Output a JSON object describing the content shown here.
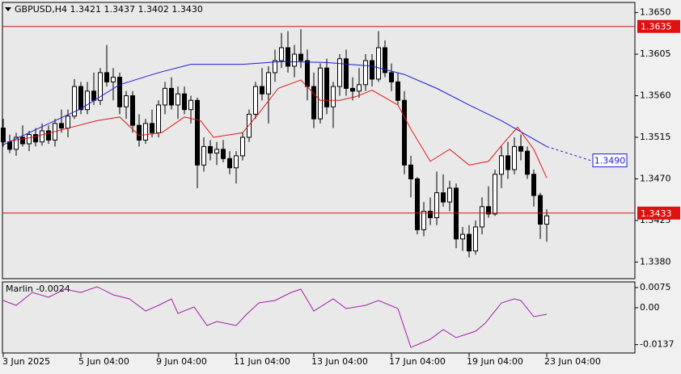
{
  "chart_data": [
    {
      "type": "candlestick",
      "title": "GBPUSD,H4  1.3421 1.3437 1.3402 1.3430",
      "xlim": [
        -0.125,
        97.625
      ],
      "xticks": [
        {
          "value": 0,
          "label": "3 Jun 2025"
        },
        {
          "value": 12,
          "label": "5 Jun 04:00"
        },
        {
          "value": 24,
          "label": "9 Jun 04:00"
        },
        {
          "value": 36,
          "label": "11 Jun 04:00"
        },
        {
          "value": 48,
          "label": "13 Jun 04:00"
        },
        {
          "value": 60,
          "label": "17 Jun 04:00"
        },
        {
          "value": 72,
          "label": "19 Jun 04:00"
        },
        {
          "value": 84,
          "label": "23 Jun 04:00"
        }
      ],
      "ylim": [
        1.3362,
        1.3661
      ],
      "yticks": [
        {
          "value": 1.365,
          "label": "1.3650"
        },
        1.3605,
        {
          "value": 1.356,
          "label": "1.3560"
        },
        1.3515,
        {
          "value": 1.347,
          "label": "1.3470"
        },
        1.3425,
        {
          "value": 1.338,
          "label": "1.3380"
        }
      ],
      "candles": {
        "up_color": "#ffffff",
        "down_color": "#000000",
        "open": [
          1.3525,
          1.351,
          1.3502,
          1.3515,
          1.3508,
          1.3518,
          1.351,
          1.3522,
          1.3512,
          1.353,
          1.3525,
          1.3538,
          1.357,
          1.3545,
          1.3565,
          1.3555,
          1.3585,
          1.3575,
          1.358,
          1.3548,
          1.356,
          1.3528,
          1.3512,
          1.353,
          1.352,
          1.355,
          1.3568,
          1.355,
          1.3562,
          1.3545,
          1.3555,
          1.3485,
          1.3505,
          1.3498,
          1.3502,
          1.3492,
          1.3482,
          1.3495,
          1.3515,
          1.354,
          1.357,
          1.3562,
          1.3585,
          1.3598,
          1.3612,
          1.3592,
          1.3605,
          1.3598,
          1.357,
          1.3535,
          1.359,
          1.3548,
          1.357,
          1.36,
          1.3568,
          1.3565,
          1.3572,
          1.3598,
          1.3578,
          1.3612,
          1.3585,
          1.3575,
          1.3555,
          1.3485,
          1.347,
          1.3415,
          1.3435,
          1.3428,
          1.3455,
          1.3445,
          1.346,
          1.3405,
          1.341,
          1.3392,
          1.3418,
          1.344,
          1.3432,
          1.3475,
          1.3495,
          1.348,
          1.3505,
          1.35,
          1.3475,
          1.3452,
          1.3421
        ],
        "high": [
          1.3535,
          1.3518,
          1.352,
          1.3528,
          1.3522,
          1.3525,
          1.353,
          1.3528,
          1.3535,
          1.3545,
          1.3545,
          1.3578,
          1.3575,
          1.3575,
          1.3585,
          1.359,
          1.3615,
          1.359,
          1.3585,
          1.3565,
          1.3565,
          1.354,
          1.3535,
          1.3545,
          1.3555,
          1.3575,
          1.358,
          1.357,
          1.357,
          1.356,
          1.3558,
          1.3515,
          1.3512,
          1.351,
          1.3512,
          1.35,
          1.35,
          1.352,
          1.3545,
          1.3575,
          1.359,
          1.3592,
          1.361,
          1.3628,
          1.363,
          1.3615,
          1.3632,
          1.361,
          1.3585,
          1.3595,
          1.36,
          1.3575,
          1.3605,
          1.361,
          1.358,
          1.359,
          1.3605,
          1.3605,
          1.363,
          1.362,
          1.3595,
          1.3585,
          1.3565,
          1.3495,
          1.3472,
          1.3445,
          1.345,
          1.3478,
          1.3475,
          1.3468,
          1.3465,
          1.3418,
          1.342,
          1.3425,
          1.345,
          1.3462,
          1.348,
          1.3505,
          1.351,
          1.3515,
          1.3518,
          1.3505,
          1.348,
          1.3455,
          1.3437
        ],
        "low": [
          1.3505,
          1.3498,
          1.3495,
          1.3505,
          1.35,
          1.3505,
          1.3506,
          1.3508,
          1.3505,
          1.352,
          1.3515,
          1.3535,
          1.354,
          1.354,
          1.355,
          1.355,
          1.357,
          1.3555,
          1.354,
          1.3535,
          1.352,
          1.3505,
          1.3508,
          1.3515,
          1.3515,
          1.354,
          1.3545,
          1.3535,
          1.354,
          1.353,
          1.346,
          1.3478,
          1.349,
          1.3485,
          1.3488,
          1.3475,
          1.3465,
          1.349,
          1.351,
          1.3535,
          1.3555,
          1.353,
          1.3575,
          1.359,
          1.3585,
          1.358,
          1.359,
          1.3555,
          1.3525,
          1.353,
          1.354,
          1.3525,
          1.356,
          1.356,
          1.3555,
          1.3558,
          1.3565,
          1.357,
          1.3575,
          1.358,
          1.3565,
          1.355,
          1.3475,
          1.345,
          1.341,
          1.3408,
          1.342,
          1.342,
          1.344,
          1.3435,
          1.3395,
          1.3392,
          1.3385,
          1.3388,
          1.341,
          1.3428,
          1.343,
          1.346,
          1.347,
          1.3475,
          1.349,
          1.347,
          1.344,
          1.3405,
          1.3402
        ],
        "close": [
          1.351,
          1.3502,
          1.3515,
          1.3508,
          1.3518,
          1.351,
          1.3522,
          1.3512,
          1.353,
          1.3525,
          1.3538,
          1.357,
          1.3545,
          1.3565,
          1.3555,
          1.3585,
          1.3575,
          1.358,
          1.3548,
          1.356,
          1.3528,
          1.3512,
          1.353,
          1.352,
          1.355,
          1.3568,
          1.355,
          1.3562,
          1.3545,
          1.3555,
          1.3485,
          1.3505,
          1.3498,
          1.3502,
          1.3492,
          1.3482,
          1.3495,
          1.3515,
          1.354,
          1.357,
          1.3562,
          1.3585,
          1.3598,
          1.3612,
          1.3592,
          1.3605,
          1.3598,
          1.357,
          1.3535,
          1.359,
          1.3548,
          1.357,
          1.36,
          1.3568,
          1.3565,
          1.3572,
          1.3598,
          1.3578,
          1.3612,
          1.3585,
          1.3575,
          1.3555,
          1.3485,
          1.347,
          1.3415,
          1.3435,
          1.3428,
          1.3455,
          1.3445,
          1.346,
          1.3405,
          1.341,
          1.3392,
          1.3418,
          1.344,
          1.3432,
          1.3475,
          1.3495,
          1.348,
          1.3505,
          1.35,
          1.3475,
          1.3452,
          1.3421,
          1.343
        ]
      },
      "lines": [
        {
          "color": "#1c1cd8",
          "x": [
            0,
            12,
            18,
            24,
            29,
            37,
            43,
            50,
            57,
            62,
            67,
            72,
            77,
            84
          ],
          "values": [
            1.3507,
            1.3546,
            1.3572,
            1.3585,
            1.3594,
            1.3594,
            1.3597,
            1.3596,
            1.3592,
            1.3583,
            1.3568,
            1.355,
            1.3533,
            1.3505
          ]
        },
        {
          "color": "#e01818",
          "x": [
            1,
            4.5,
            9.5,
            14.5,
            18,
            21,
            24.5,
            28,
            30.5,
            32.5,
            37,
            39.5,
            42.5,
            46,
            49,
            52,
            54.5,
            57,
            61,
            63,
            66,
            69,
            72,
            75,
            77,
            79.5,
            82,
            84
          ],
          "values": [
            1.3511,
            1.3515,
            1.3524,
            1.3533,
            1.3537,
            1.3517,
            1.352,
            1.3537,
            1.3533,
            1.3515,
            1.352,
            1.3541,
            1.3568,
            1.3577,
            1.3555,
            1.3555,
            1.3559,
            1.3566,
            1.355,
            1.3524,
            1.3489,
            1.3502,
            1.3485,
            1.3489,
            1.3506,
            1.3526,
            1.3502,
            1.3471
          ]
        },
        {
          "color": "#1c1cd8",
          "dashed": true,
          "x": [
            84,
            90.75
          ],
          "values": [
            1.3505,
            1.349
          ],
          "value_labels": [
            null,
            "1.3490"
          ]
        }
      ],
      "levels": [
        1.3635,
        1.3433
      ],
      "level_color": "#e01010"
    },
    {
      "type": "line",
      "title": "Marlin -0.0024",
      "color": "#a020a8",
      "xlim": [
        -0.125,
        97.625
      ],
      "ylim": [
        -0.0168,
        0.0096
      ],
      "yticks": [
        0.0075,
        {
          "value": 0,
          "label": "0.00"
        },
        -0.0137
      ],
      "x": [
        0,
        2,
        4.5,
        7,
        9.5,
        12,
        14.5,
        17,
        19.5,
        22,
        24,
        26,
        27,
        29.5,
        31.5,
        33,
        36,
        37.5,
        39.5,
        42,
        44.5,
        46,
        48,
        51,
        53,
        56,
        58,
        61,
        63,
        66,
        68,
        70,
        73,
        74.5,
        77,
        79,
        80,
        82,
        84
      ],
      "values": [
        0.0027,
        0.0009,
        0.0057,
        0.0039,
        0.0069,
        0.0057,
        0.0078,
        0.0048,
        0.0033,
        -0.0012,
        0.0009,
        0.0033,
        -0.0021,
        0.0003,
        -0.0066,
        -0.0051,
        -0.0066,
        -0.0027,
        0.0018,
        0.0027,
        0.0057,
        0.0069,
        -0.0012,
        0.0033,
        -0.0003,
        0.0009,
        0.0027,
        -0.0003,
        -0.0147,
        -0.0117,
        -0.0081,
        -0.0111,
        -0.0087,
        -0.0057,
        0.0018,
        0.0033,
        0.0027,
        -0.0033,
        -0.0024
      ]
    }
  ]
}
